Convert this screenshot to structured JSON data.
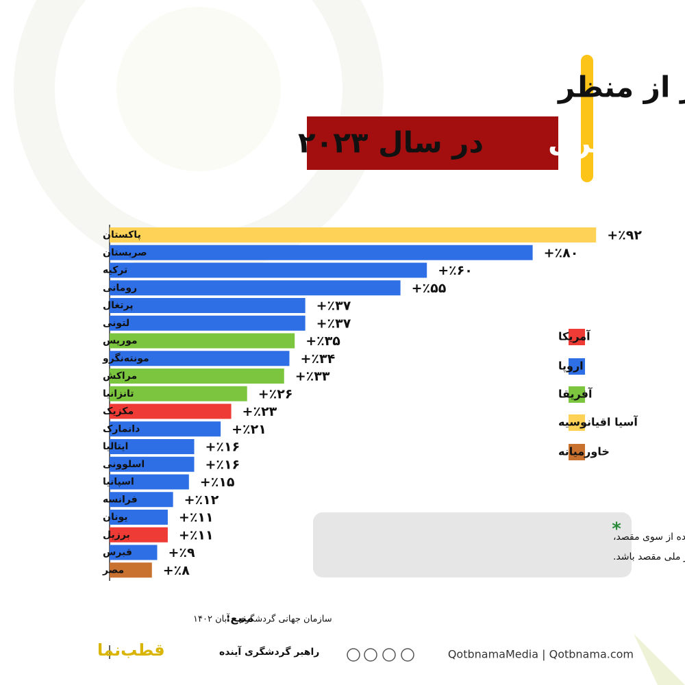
{
  "chart_data": {
    "type": "bar",
    "orientation": "horizontal",
    "title_line1": "بهترین مقاصد سفر از منظر",
    "title_highlight": "درآمد گردشگری",
    "title_rest": "در سال ۲۰۲۳",
    "categories": [
      "پاکستان",
      "صربستان",
      "ترکیه",
      "رومانی",
      "پرتغال",
      "لتونی",
      "موریس",
      "مونته‌نگرو",
      "مراکش",
      "تانزانیا",
      "مکزیک",
      "دانمارک",
      "ایتالیا",
      "اسلوونی",
      "اسپانیا",
      "فرانسه",
      "یونان",
      "برزیل",
      "قبرس",
      "مصر"
    ],
    "values": [
      92,
      80,
      60,
      55,
      37,
      37,
      35,
      34,
      33,
      26,
      23,
      21,
      16,
      16,
      15,
      12,
      11,
      11,
      9,
      8
    ],
    "value_labels": [
      "+٪۹۲",
      "+٪۸۰",
      "+٪۶۰",
      "+٪۵۵",
      "+٪۳۷",
      "+٪۳۷",
      "+٪۳۵",
      "+٪۳۴",
      "+٪۳۳",
      "+٪۲۶",
      "+٪۲۳",
      "+٪۲۱",
      "+٪۱۶",
      "+٪۱۶",
      "+٪۱۵",
      "+٪۱۲",
      "+٪۱۱",
      "+٪۱۱",
      "+٪۹",
      "+٪۸"
    ],
    "colors": [
      "#fdd257",
      "#2f6fe6",
      "#2f6fe6",
      "#2f6fe6",
      "#2f6fe6",
      "#2f6fe6",
      "#7cc63f",
      "#2f6fe6",
      "#7cc63f",
      "#7cc63f",
      "#ee3b36",
      "#2f6fe6",
      "#2f6fe6",
      "#2f6fe6",
      "#2f6fe6",
      "#2f6fe6",
      "#2f6fe6",
      "#ee3b36",
      "#2f6fe6",
      "#c9712f"
    ],
    "legend": [
      {
        "name": "آمریکا",
        "color": "#ee3b36"
      },
      {
        "name": "اروپا",
        "color": "#2f6fe6"
      },
      {
        "name": "آفریقا",
        "color": "#7cc63f"
      },
      {
        "name": "آسیا اقیانوسیه",
        "color": "#fdd257"
      },
      {
        "name": "خاورمیانه",
        "color": "#c9712f"
      }
    ],
    "note_mark": "*",
    "note_lines": [
      "بسته به گزارش‌های ارائه شده از سوی مقصد،",
      "این تغییرات ممکن است بر اساس ارز ملی مقصد باشد."
    ],
    "source_label": "منبع:",
    "source_text": "سازمان جهانی گردشگری - آبان ۱۴۰۲",
    "brand": "قطب‌نما",
    "tagline": "راهبر گردشگری آینده",
    "footer_links": "QotbnamaMedia | Qotbnama.com"
  }
}
